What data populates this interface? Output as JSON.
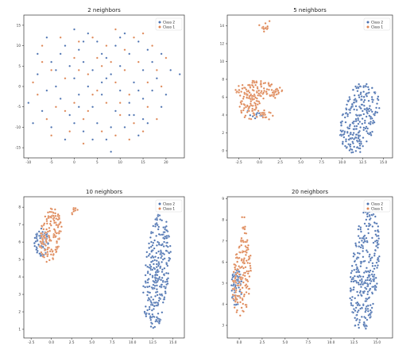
{
  "chart_data": [
    {
      "type": "scatter",
      "title": "2 neighbors",
      "xlabel": "",
      "ylabel": "",
      "xlim": [
        -11,
        24
      ],
      "ylim": [
        -17.5,
        17.5
      ],
      "xticks": [
        -10,
        -5,
        0,
        5,
        10,
        15,
        20
      ],
      "yticks": [
        -15,
        -10,
        -5,
        0,
        5,
        10,
        15
      ],
      "legend": "top-right",
      "grid": false,
      "series": [
        {
          "name": "Class 2",
          "color": "#4c72b0",
          "points": [
            [
              -10,
              -4
            ],
            [
              -9,
              -9
            ],
            [
              -8,
              8
            ],
            [
              -8,
              3
            ],
            [
              -7,
              -6
            ],
            [
              -6,
              12
            ],
            [
              -5,
              -10
            ],
            [
              -5,
              6
            ],
            [
              -4,
              0
            ],
            [
              -3,
              -3
            ],
            [
              -2,
              10
            ],
            [
              -2,
              -13
            ],
            [
              -1,
              5
            ],
            [
              -1,
              -7
            ],
            [
              0,
              14
            ],
            [
              0,
              2
            ],
            [
              1,
              -2
            ],
            [
              1,
              9
            ],
            [
              2,
              -11
            ],
            [
              2,
              6
            ],
            [
              3,
              0
            ],
            [
              3,
              13
            ],
            [
              4,
              -5
            ],
            [
              4,
              4
            ],
            [
              5,
              -9
            ],
            [
              5,
              11
            ],
            [
              6,
              1
            ],
            [
              6,
              -2
            ],
            [
              7,
              7
            ],
            [
              7,
              -13
            ],
            [
              8,
              -16
            ],
            [
              8,
              3
            ],
            [
              9,
              -6
            ],
            [
              9,
              10
            ],
            [
              10,
              -1
            ],
            [
              10,
              5
            ],
            [
              11,
              -10
            ],
            [
              11,
              13
            ],
            [
              12,
              8
            ],
            [
              12,
              -4
            ],
            [
              13,
              1
            ],
            [
              13,
              -7
            ],
            [
              14,
              11
            ],
            [
              14,
              -12
            ],
            [
              15,
              4
            ],
            [
              15,
              -3
            ],
            [
              16,
              9
            ],
            [
              16,
              -9
            ],
            [
              17,
              -1
            ],
            [
              17,
              6
            ],
            [
              18,
              2
            ],
            [
              19,
              -5
            ],
            [
              19,
              8
            ],
            [
              20,
              -2
            ],
            [
              21,
              4
            ],
            [
              23,
              3
            ],
            [
              -6,
              -1
            ],
            [
              -3,
              8
            ],
            [
              0,
              -9
            ],
            [
              2,
              11
            ],
            [
              4,
              -13
            ],
            [
              6,
              8
            ],
            [
              8,
              -10
            ],
            [
              10,
              12
            ],
            [
              12,
              -7
            ],
            [
              14,
              -1
            ],
            [
              -4,
              4
            ],
            [
              1,
              -5
            ],
            [
              7,
              2
            ],
            [
              15,
              -8
            ]
          ]
        },
        {
          "name": "Class 1",
          "color": "#dd8452",
          "points": [
            [
              -9,
              1
            ],
            [
              -8,
              -2
            ],
            [
              -7,
              10
            ],
            [
              -6,
              -8
            ],
            [
              -5,
              4
            ],
            [
              -4,
              -5
            ],
            [
              -3,
              12
            ],
            [
              -2,
              2
            ],
            [
              -1,
              -11
            ],
            [
              0,
              7
            ],
            [
              0,
              -4
            ],
            [
              1,
              11
            ],
            [
              2,
              -8
            ],
            [
              3,
              3
            ],
            [
              3,
              -6
            ],
            [
              4,
              12
            ],
            [
              5,
              -1
            ],
            [
              5,
              7
            ],
            [
              6,
              -11
            ],
            [
              7,
              10
            ],
            [
              7,
              -4
            ],
            [
              8,
              6
            ],
            [
              9,
              -12
            ],
            [
              9,
              1
            ],
            [
              10,
              -7
            ],
            [
              11,
              4
            ],
            [
              11,
              9
            ],
            [
              12,
              -2
            ],
            [
              13,
              12
            ],
            [
              13,
              -9
            ],
            [
              14,
              6
            ],
            [
              15,
              -11
            ],
            [
              16,
              1
            ],
            [
              16,
              -5
            ],
            [
              17,
              10
            ],
            [
              18,
              -8
            ],
            [
              18,
              4
            ],
            [
              19,
              0
            ],
            [
              20,
              7
            ],
            [
              -5,
              -12
            ],
            [
              -2,
              -6
            ],
            [
              1,
              4
            ],
            [
              4,
              -2
            ],
            [
              6,
              5
            ],
            [
              9,
              14
            ],
            [
              12,
              -13
            ],
            [
              15,
              13
            ],
            [
              -7,
              6
            ],
            [
              2,
              -14
            ],
            [
              10,
              -4
            ]
          ]
        }
      ]
    },
    {
      "type": "scatter",
      "title": "5 neighbors",
      "xlabel": "",
      "ylabel": "",
      "xlim": [
        -3.9,
        16.1
      ],
      "ylim": [
        -0.8,
        15.2
      ],
      "xticks": [
        -2.5,
        0.0,
        2.5,
        5.0,
        7.5,
        10.0,
        12.5,
        15.0
      ],
      "yticks": [
        0,
        2,
        4,
        6,
        8,
        10,
        12,
        14
      ],
      "legend": "top-right",
      "grid": false,
      "series": [
        {
          "name": "Class 2",
          "color": "#4c72b0"
        },
        {
          "name": "Class 1",
          "color": "#dd8452"
        }
      ]
    },
    {
      "type": "scatter",
      "title": "10 neighbors",
      "xlabel": "",
      "ylabel": "",
      "xlim": [
        -3.4,
        16.4
      ],
      "ylim": [
        0.5,
        8.6
      ],
      "xticks": [
        -2.5,
        0.0,
        2.5,
        5.0,
        7.5,
        10.0,
        12.5,
        15.0
      ],
      "yticks": [
        1,
        2,
        3,
        4,
        5,
        6,
        7,
        8
      ],
      "legend": "top-right",
      "grid": false,
      "series": [
        {
          "name": "Class 2",
          "color": "#4c72b0"
        },
        {
          "name": "Class 1",
          "color": "#dd8452"
        }
      ]
    },
    {
      "type": "scatter",
      "title": "20 neighbors",
      "xlabel": "",
      "ylabel": "",
      "xlim": [
        -1.3,
        16.7
      ],
      "ylim": [
        2.4,
        9.1
      ],
      "xticks": [
        0.0,
        2.5,
        5.0,
        7.5,
        10.0,
        12.5,
        15.0
      ],
      "yticks": [
        3,
        4,
        5,
        6,
        7,
        8,
        9
      ],
      "legend": "top-right",
      "grid": false,
      "series": [
        {
          "name": "Class 2",
          "color": "#4c72b0"
        },
        {
          "name": "Class 1",
          "color": "#dd8452"
        }
      ]
    }
  ]
}
